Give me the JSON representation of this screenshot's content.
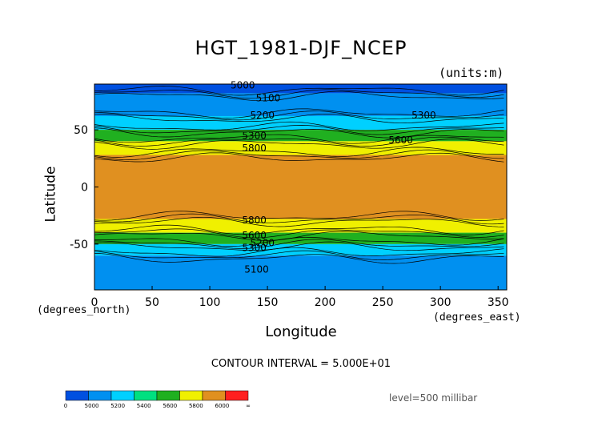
{
  "chart_data": {
    "type": "heatmap",
    "title": "HGT_1981-DJF_NCEP",
    "units_label": "(units:m)",
    "xlabel": "Longitude",
    "ylabel": "Latitude",
    "x_unit_label": "(degrees_north)",
    "x_unit_label_east": "(degrees_east)",
    "x_ticks": [
      0,
      50,
      100,
      150,
      200,
      250,
      300,
      350
    ],
    "y_ticks": [
      50,
      0,
      -50
    ],
    "xlim": [
      0,
      357.5
    ],
    "ylim": [
      -90,
      90
    ],
    "contour_interval_text": "CONTOUR INTERVAL = 5.000E+01",
    "level_text": "level=500 millibar",
    "contour_labels": [
      "5000",
      "5100",
      "5200",
      "5300",
      "5300",
      "5600",
      "5800",
      "5800",
      "5600",
      "5200",
      "5300",
      "5100"
    ],
    "colorbar": {
      "labels": [
        "0",
        "5000",
        "5200",
        "5400",
        "5600",
        "5800",
        "6000",
        "∞"
      ],
      "colors": [
        "#0050e0",
        "#0090f0",
        "#00d0ff",
        "#00e080",
        "#20b020",
        "#f0f000",
        "#e09020",
        "#ff2020"
      ]
    },
    "zones": [
      {
        "lat_min": 82,
        "lat_max": 90,
        "value": "5000",
        "color": "#0050e0"
      },
      {
        "lat_min": 62,
        "lat_max": 82,
        "value": "5100",
        "color": "#0090f0"
      },
      {
        "lat_min": 50,
        "lat_max": 62,
        "value": "5400",
        "color": "#00d0ff"
      },
      {
        "lat_min": 40,
        "lat_max": 50,
        "value": "5500",
        "color": "#20b020"
      },
      {
        "lat_min": 28,
        "lat_max": 40,
        "value": "5700",
        "color": "#f0f000"
      },
      {
        "lat_min": -28,
        "lat_max": 28,
        "value": "5850",
        "color": "#e09020"
      },
      {
        "lat_min": -40,
        "lat_max": -28,
        "value": "5700",
        "color": "#f0f000"
      },
      {
        "lat_min": -50,
        "lat_max": -40,
        "value": "5500",
        "color": "#20b020"
      },
      {
        "lat_min": -60,
        "lat_max": -50,
        "value": "5400",
        "color": "#00d0ff"
      },
      {
        "lat_min": -90,
        "lat_max": -60,
        "value": "5100",
        "color": "#0090f0"
      }
    ],
    "grid": false
  }
}
